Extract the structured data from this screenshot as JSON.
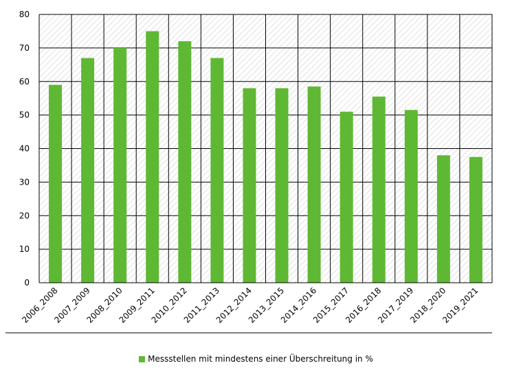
{
  "chart_data": {
    "type": "bar",
    "categories": [
      "2006_2008",
      "2007_2009",
      "2008_2010",
      "2009_2011",
      "2010_2012",
      "2011_2013",
      "2012_2014",
      "2013_2015",
      "2014_2016",
      "2015_2017",
      "2016_2018",
      "2017_2019",
      "2018_2020",
      "2019_2021"
    ],
    "series": [
      {
        "name": "Messstellen mit mindestens einer Überschreitung in %",
        "values": [
          59,
          67,
          70,
          75,
          72,
          67,
          58,
          58,
          58.5,
          51,
          55.5,
          51.5,
          38,
          37.5
        ]
      }
    ],
    "ylim": [
      0,
      80
    ],
    "yticks": [
      "0",
      "10",
      "20",
      "30",
      "40",
      "50",
      "60",
      "70",
      "80"
    ],
    "grid": true,
    "legend_position": "bottom",
    "colors": {
      "bar": "#5fb833",
      "grid": "#000000",
      "hatch": "#d4d4d4"
    }
  }
}
